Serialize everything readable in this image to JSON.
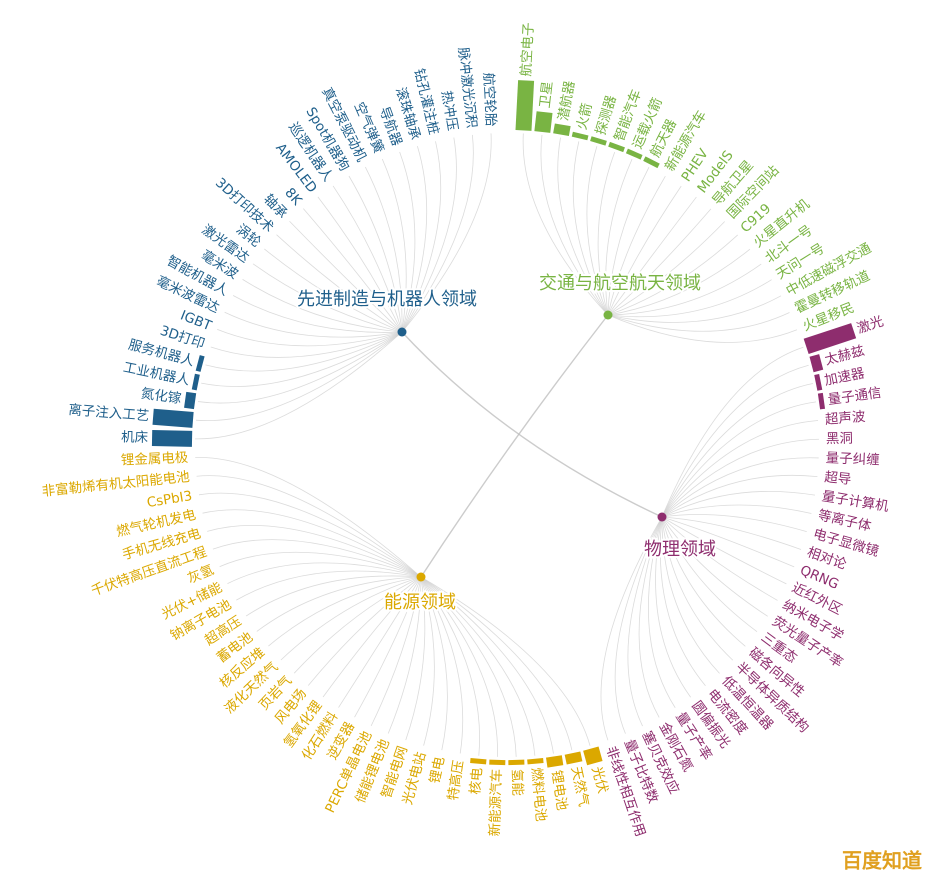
{
  "chart_data": {
    "type": "bundle",
    "groups": [
      {
        "name": "交通与航空航天领域",
        "color": "#79b443",
        "categories": [
          "航空电子",
          "卫星",
          "潜航器",
          "火箭",
          "探测器",
          "智能汽车",
          "运载火箭",
          "航天器",
          "新能源汽车",
          "PHEV",
          "ModelS",
          "导航卫星",
          "国际空间站",
          "C919",
          "火星直升机",
          "北斗一号",
          "天问一号",
          "中低速磁浮交通",
          "霍曼转移轨道",
          "火星移民"
        ],
        "values": [
          10,
          4,
          2,
          1,
          1,
          1,
          1,
          1,
          0,
          0,
          0,
          0,
          0,
          0,
          0,
          0,
          0,
          0,
          0,
          0
        ]
      },
      {
        "name": "物理领域",
        "color": "#8e2d6e",
        "categories": [
          "激光",
          "太赫兹",
          "加速器",
          "量子通信",
          "超声波",
          "黑洞",
          "量子纠缠",
          "超导",
          "量子计算机",
          "等离子体",
          "电子显微镜",
          "相对论",
          "QRNG",
          "近红外区",
          "纳米电子学",
          "荧光量子产率",
          "三重态",
          "磁各向异性",
          "半导体异质结构",
          "低温恒温器",
          "电流密度",
          "圆偏振光",
          "量子产率",
          "金刚石氮",
          "塞贝克效应",
          "量子比特数",
          "非线性相互作用"
        ],
        "values": [
          10,
          2,
          1,
          1,
          0,
          0,
          0,
          0,
          0,
          0,
          0,
          0,
          0,
          0,
          0,
          0,
          0,
          0,
          0,
          0,
          0,
          0,
          0,
          0,
          0,
          0,
          0
        ]
      },
      {
        "name": "能源领域",
        "color": "#dba800",
        "categories": [
          "光伏",
          "天然气",
          "锂电池",
          "燃料电池",
          "氢能",
          "新能源汽车",
          "核电",
          "特高压",
          "锂电",
          "光伏电站",
          "智能电网",
          "储能锂电池",
          "PERC单晶电池",
          "逆变器",
          "化石燃料",
          "氢氧化锂",
          "风电场",
          "页岩气",
          "液化天然气",
          "核反应堆",
          "蓄电池",
          "超高压",
          "钠离子电池",
          "光伏+储能",
          "灰氢",
          "千伏特高压直流工程",
          "手机无线充电",
          "燃气轮机发电",
          "CsPbI3",
          "非富勒烯有机太阳能电池",
          "锂金属电极"
        ],
        "values": [
          3,
          2,
          2,
          1,
          1,
          1,
          1,
          0,
          0,
          0,
          0,
          0,
          0,
          0,
          0,
          0,
          0,
          0,
          0,
          0,
          0,
          0,
          0,
          0,
          0,
          0,
          0,
          0,
          0,
          0,
          0
        ]
      },
      {
        "name": "先进制造与机器人领域",
        "color": "#1f5f8b",
        "categories": [
          "机床",
          "离子注入工艺",
          "氮化镓",
          "工业机器人",
          "服务机器人",
          "3D打印",
          "IGBT",
          "毫米波雷达",
          "智能机器人",
          "毫米波",
          "激光雷达",
          "涡轮",
          "3D打印技术",
          "轴承",
          "8K",
          "AMOLED",
          "巡逻机器人",
          "Spot机器狗",
          "真空泵驱动机",
          "空气弹簧",
          "导航器",
          "滚珠轴承",
          "钻孔灌注桩",
          "热冲压",
          "脉冲激光沉积",
          "航空轮胎"
        ],
        "values": [
          8,
          8,
          2,
          1,
          1,
          0,
          0,
          0,
          0,
          0,
          0,
          0,
          0,
          0,
          0,
          0,
          0,
          0,
          0,
          0,
          0,
          0,
          0,
          0,
          0,
          0
        ]
      }
    ]
  },
  "watermark": "百度知道"
}
